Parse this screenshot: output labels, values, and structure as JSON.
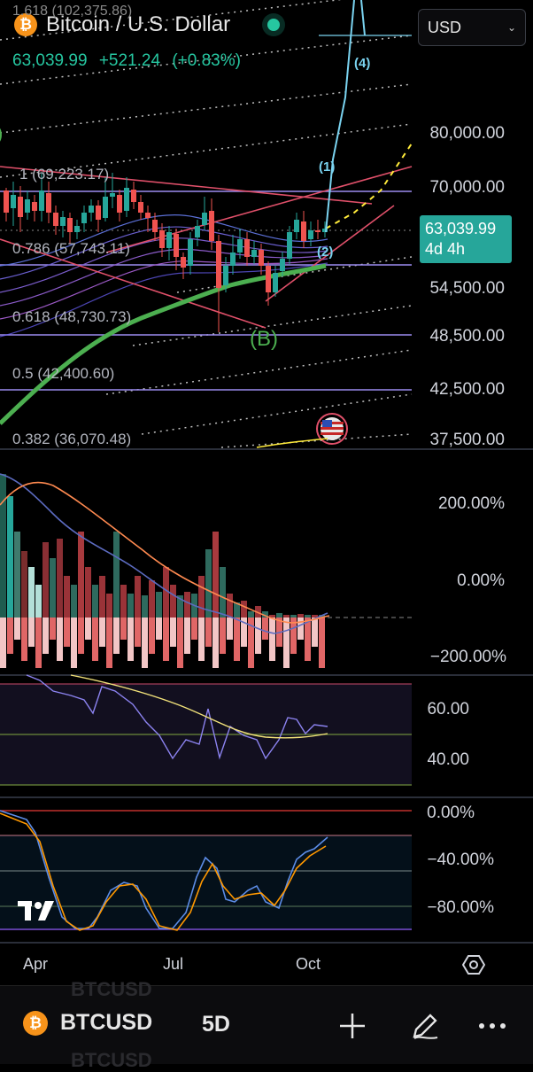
{
  "header": {
    "title": "Bitcoin / U.S. Dollar",
    "price": "63,039.99",
    "change": "+521.24",
    "change_pct": "(+0.83%)",
    "currency": "USD",
    "coin_symbol": "₿",
    "top_fib_partial": "1.618 (102,375.86)"
  },
  "price_axis": [
    "80,000.00",
    "70,000.00",
    "54,500.00",
    "48,500.00",
    "42,500.00",
    "37,500.00"
  ],
  "price_tag": {
    "value": "63,039.99",
    "countdown": "4d 4h"
  },
  "fib_labels": [
    "1 (69,223.17)",
    "0.786 (57,743.11)",
    "0.618 (48,730.73)",
    "0.5 (42,400.60)",
    "0.382 (36,070.48)"
  ],
  "wave_labels": [
    "(1)",
    "(2)",
    "(4)",
    "(B)"
  ],
  "macd_axis": [
    "200.00%",
    "0.00%",
    "−200.00%"
  ],
  "rsi_axis": [
    "60.00",
    "40.00"
  ],
  "stoch_axis": [
    "0.00%",
    "−40.00%",
    "−80.00%"
  ],
  "time_axis": [
    "Apr",
    "Jul",
    "Oct"
  ],
  "bottom_bar": {
    "symbol": "BTCUSD",
    "interval": "5D",
    "ghost_symbol": "BTCUSD"
  },
  "icons": {
    "add": "plus-icon",
    "draw": "pen-icon",
    "more": "more-icon",
    "settings": "settings-icon",
    "flag": "us-flag-icon",
    "logo": "tradingview-logo"
  },
  "colors": {
    "accent": "#26c6a0",
    "up": "#26a69a",
    "down": "#ef5350",
    "background": "#000000"
  }
}
